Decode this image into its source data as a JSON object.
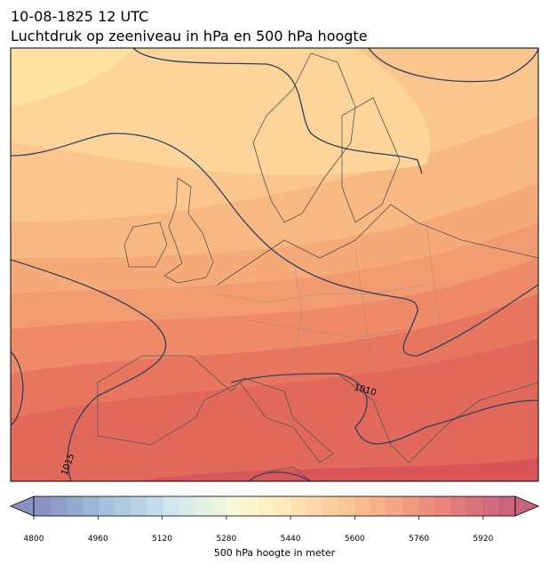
{
  "header": {
    "date": "10-08-1825 12 UTC",
    "title": "Luchtdruk op zeeniveau in hPa en 500 hPa hoogte"
  },
  "map": {
    "contour_labels": [
      "1015",
      "1010"
    ]
  },
  "colorbar": {
    "label": "500 hPa hoogte in meter",
    "lim": [
      4800,
      6000
    ],
    "step": 40,
    "ticks": [
      4800,
      4960,
      5120,
      5280,
      5440,
      5600,
      5760,
      5920
    ],
    "colors": [
      "#6b77b4",
      "#8fb3d5",
      "#c6e2ec",
      "#fbf9c8",
      "#fdd597",
      "#f7a26f",
      "#e4675a",
      "#bd3c5c"
    ]
  }
}
